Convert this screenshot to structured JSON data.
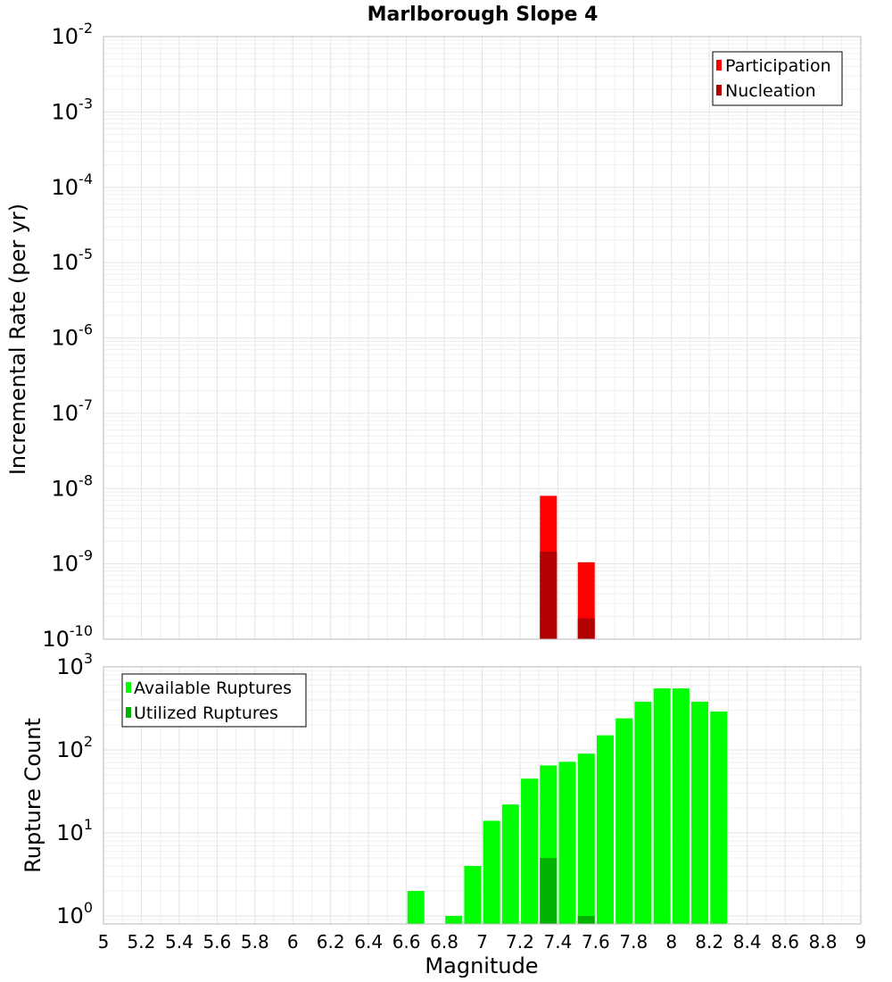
{
  "chart_data": [
    {
      "type": "bar",
      "title": "Marlborough Slope 4",
      "xlabel": "",
      "ylabel": "Incremental Rate (per yr)",
      "yscale": "log",
      "ylim": [
        1e-10,
        0.01
      ],
      "xlim": [
        5,
        9
      ],
      "grid": true,
      "legend_position": "top-right",
      "series": [
        {
          "name": "Participation",
          "color": "#ff0000",
          "x": [
            7.35,
            7.55
          ],
          "values": [
            8e-09,
            1.05e-09
          ]
        },
        {
          "name": "Nucleation",
          "color": "#b30000",
          "x": [
            7.35,
            7.55
          ],
          "values": [
            1.45e-09,
            1.9e-10
          ]
        }
      ]
    },
    {
      "type": "bar",
      "xlabel": "Magnitude",
      "ylabel": "Rupture Count",
      "yscale": "log",
      "ylim": [
        0.8,
        1000
      ],
      "xlim": [
        5,
        9
      ],
      "xticks": [
        "5",
        "5.2",
        "5.4",
        "5.6",
        "5.8",
        "6",
        "6.2",
        "6.4",
        "6.6",
        "6.8",
        "7",
        "7.2",
        "7.4",
        "7.6",
        "7.8",
        "8",
        "8.2",
        "8.4",
        "8.6",
        "8.8",
        "9"
      ],
      "grid": true,
      "legend_position": "top-left",
      "series": [
        {
          "name": "Available Ruptures",
          "color": "#00ff00",
          "x": [
            6.65,
            6.85,
            6.95,
            7.05,
            7.15,
            7.25,
            7.35,
            7.45,
            7.55,
            7.65,
            7.75,
            7.85,
            7.95,
            8.05,
            8.15,
            8.25
          ],
          "values": [
            2,
            1,
            4,
            14,
            22,
            45,
            65,
            72,
            90,
            150,
            240,
            380,
            550,
            550,
            380,
            290
          ]
        },
        {
          "name": "Utilized Ruptures",
          "color": "#00b300",
          "x": [
            7.35,
            7.55
          ],
          "values": [
            5,
            1
          ]
        }
      ]
    }
  ]
}
